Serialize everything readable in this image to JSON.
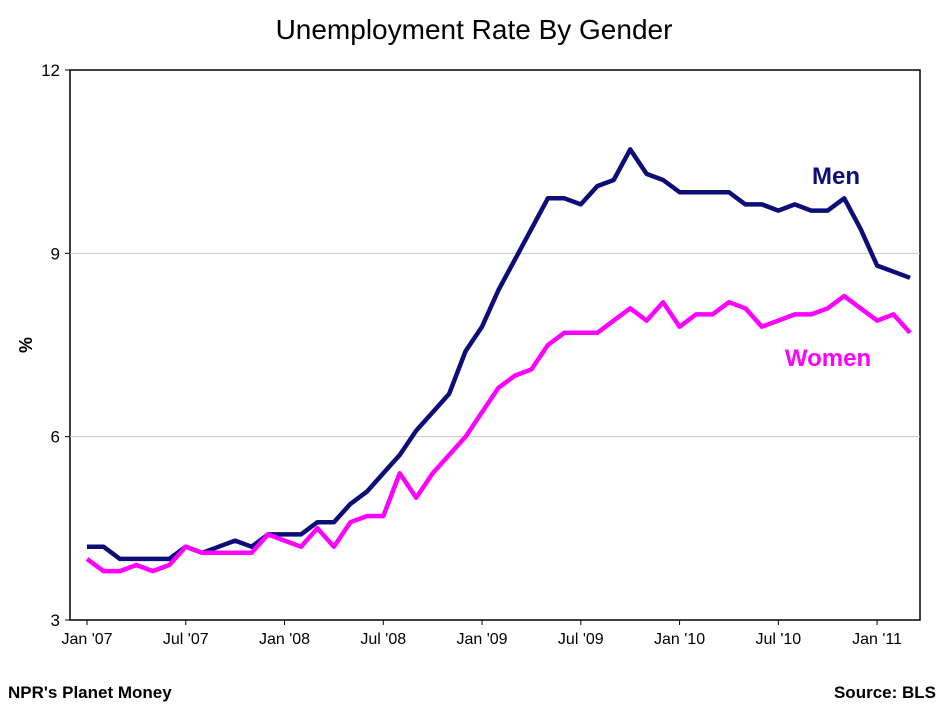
{
  "chart_data": {
    "type": "line",
    "title": "Unemployment Rate By Gender",
    "ylabel": "%",
    "xlabel": "",
    "ylim": [
      3,
      12
    ],
    "yticks": [
      3,
      6,
      9,
      12
    ],
    "grid": "horizontal",
    "x_start": "Jan 2007",
    "x_end": "Mar 2011",
    "x_frequency": "monthly",
    "xtick_labels": [
      "Jan '07",
      "Jul '07",
      "Jan '08",
      "Jul '08",
      "Jan '09",
      "Jul '09",
      "Jan '10",
      "Jul '10",
      "Jan '11"
    ],
    "series": [
      {
        "name": "Men",
        "color": "#0d0d7a",
        "values": [
          4.2,
          4.2,
          4.0,
          4.0,
          4.0,
          4.0,
          4.2,
          4.1,
          4.2,
          4.3,
          4.2,
          4.4,
          4.4,
          4.4,
          4.6,
          4.6,
          4.9,
          5.1,
          5.4,
          5.7,
          6.1,
          6.4,
          6.7,
          7.4,
          7.8,
          8.4,
          8.9,
          9.4,
          9.9,
          9.9,
          9.8,
          10.1,
          10.2,
          10.7,
          10.3,
          10.2,
          10.0,
          10.0,
          10.0,
          10.0,
          9.8,
          9.8,
          9.7,
          9.8,
          9.7,
          9.7,
          9.9,
          9.4,
          8.8,
          8.7,
          8.6
        ]
      },
      {
        "name": "Women",
        "color": "#ff00ff",
        "values": [
          4.0,
          3.8,
          3.8,
          3.9,
          3.8,
          3.9,
          4.2,
          4.1,
          4.1,
          4.1,
          4.1,
          4.4,
          4.3,
          4.2,
          4.5,
          4.2,
          4.6,
          4.7,
          4.7,
          5.4,
          5.0,
          5.4,
          5.7,
          6.0,
          6.4,
          6.8,
          7.0,
          7.1,
          7.5,
          7.7,
          7.7,
          7.7,
          7.9,
          8.1,
          7.9,
          8.2,
          7.8,
          8.0,
          8.0,
          8.2,
          8.1,
          7.8,
          7.9,
          8.0,
          8.0,
          8.1,
          8.3,
          8.1,
          7.9,
          8.0,
          7.7
        ]
      }
    ]
  },
  "footer": {
    "left": "NPR's Planet Money",
    "right": "Source: BLS"
  }
}
